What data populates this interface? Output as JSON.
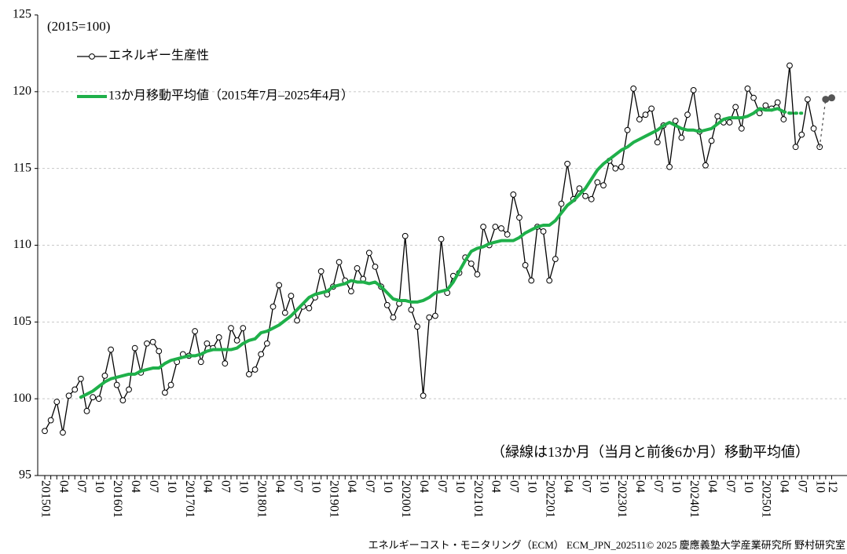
{
  "chart_data": {
    "type": "line",
    "unit_label": "(2015=100)",
    "annotation": "（緑線は13か月（当月と前後6か月）移動平均値）",
    "footer": "エネルギーコスト・モニタリング（ECM） ECM_JPN_202511© 2025 慶應義塾大学産業研究所 野村研究室",
    "categories": [
      "201501",
      null,
      null,
      "04",
      null,
      null,
      "07",
      null,
      null,
      "10",
      null,
      null,
      "201601",
      null,
      null,
      "04",
      null,
      null,
      "07",
      null,
      null,
      "10",
      null,
      null,
      "201701",
      null,
      null,
      "04",
      null,
      null,
      "07",
      null,
      null,
      "10",
      null,
      null,
      "201801",
      null,
      null,
      "04",
      null,
      null,
      "07",
      null,
      null,
      "10",
      null,
      null,
      "201901",
      null,
      null,
      "04",
      null,
      null,
      "07",
      null,
      null,
      "10",
      null,
      null,
      "202001",
      null,
      null,
      "04",
      null,
      null,
      "07",
      null,
      null,
      "10",
      null,
      null,
      "202101",
      null,
      null,
      "04",
      null,
      null,
      "07",
      null,
      null,
      "10",
      null,
      null,
      "202201",
      null,
      null,
      "04",
      null,
      null,
      "07",
      null,
      null,
      "10",
      null,
      null,
      "202301",
      null,
      null,
      "04",
      null,
      null,
      "07",
      null,
      null,
      "10",
      null,
      null,
      "202401",
      null,
      null,
      "04",
      null,
      null,
      "07",
      null,
      null,
      "10",
      null,
      null,
      "202501",
      null,
      null,
      "04",
      null,
      null,
      "07",
      null,
      null,
      "10",
      null,
      "12"
    ],
    "series": [
      {
        "name": "エネルギー生産性",
        "color": "#000000",
        "marker": "open-circle",
        "values": [
          97.9,
          98.6,
          99.8,
          97.8,
          100.2,
          100.6,
          101.3,
          99.2,
          100.1,
          100.0,
          101.5,
          103.2,
          100.9,
          99.9,
          100.6,
          103.3,
          101.7,
          103.6,
          103.7,
          103.1,
          100.4,
          100.9,
          102.4,
          102.9,
          102.8,
          104.4,
          102.4,
          103.6,
          103.3,
          104.0,
          102.3,
          104.6,
          103.8,
          104.6,
          101.6,
          101.9,
          102.9,
          103.6,
          106.0,
          107.4,
          105.6,
          106.7,
          105.1,
          106.0,
          105.9,
          106.6,
          108.3,
          106.8,
          107.3,
          108.9,
          107.7,
          107.0,
          108.5,
          107.8,
          109.5,
          108.6,
          107.3,
          106.1,
          105.3,
          106.2,
          110.6,
          105.8,
          104.7,
          100.2,
          105.3,
          105.4,
          110.4,
          106.9,
          108.0,
          108.2,
          109.2,
          108.8,
          108.1,
          111.2,
          110.0,
          111.2,
          111.1,
          110.7,
          113.3,
          111.8,
          108.7,
          107.7,
          111.2,
          110.9,
          107.7,
          109.1,
          112.7,
          115.3,
          113.0,
          113.7,
          113.2,
          113.0,
          114.1,
          113.9,
          115.5,
          115.0,
          115.1,
          117.5,
          120.2,
          118.2,
          118.5,
          118.9,
          116.7,
          117.8,
          115.1,
          118.1,
          117.0,
          118.5,
          120.1,
          117.4,
          115.2,
          116.8,
          118.4,
          118.0,
          118.0,
          119.0,
          117.6,
          120.2,
          119.6,
          118.6,
          119.1,
          118.9,
          119.3,
          118.2,
          121.7,
          116.4,
          117.2,
          119.5,
          117.6,
          116.4,
          null,
          null
        ]
      },
      {
        "name": "13か月移動平均値（2015年7月–2025年4月）",
        "color": "#1fb04a",
        "width": 4,
        "values": [
          null,
          null,
          null,
          null,
          null,
          null,
          100.1,
          100.3,
          100.5,
          100.8,
          101.1,
          101.3,
          101.4,
          101.5,
          101.6,
          101.6,
          101.8,
          101.9,
          102.0,
          102.0,
          102.3,
          102.5,
          102.6,
          102.7,
          102.8,
          102.8,
          102.9,
          103.1,
          103.2,
          103.2,
          103.2,
          103.2,
          103.3,
          103.6,
          103.8,
          103.9,
          104.3,
          104.4,
          104.6,
          104.8,
          105.1,
          105.4,
          105.8,
          106.2,
          106.6,
          106.8,
          106.9,
          107.0,
          107.3,
          107.4,
          107.5,
          107.7,
          107.6,
          107.6,
          107.5,
          107.6,
          107.3,
          106.9,
          106.5,
          106.4,
          106.4,
          106.3,
          106.3,
          106.4,
          106.6,
          106.9,
          107.0,
          107.1,
          107.6,
          108.3,
          109.0,
          109.6,
          109.8,
          109.9,
          110.1,
          110.2,
          110.3,
          110.3,
          110.3,
          110.5,
          110.8,
          111.0,
          111.2,
          111.3,
          111.3,
          111.6,
          112.1,
          112.6,
          112.9,
          113.3,
          113.7,
          114.3,
          114.9,
          115.3,
          115.6,
          115.9,
          116.2,
          116.4,
          116.7,
          116.9,
          117.1,
          117.3,
          117.5,
          117.8,
          118.0,
          117.8,
          117.6,
          117.5,
          117.5,
          117.4,
          117.5,
          117.6,
          117.9,
          118.2,
          118.3,
          118.3,
          118.3,
          118.4,
          118.6,
          118.9,
          118.8,
          118.8,
          118.9,
          118.7,
          null,
          null,
          null,
          null,
          null,
          null,
          null,
          null
        ]
      },
      {
        "color": "#555555",
        "marker": "filled-circle",
        "style": "dotted",
        "joins": 0,
        "values": [
          null,
          null,
          null,
          null,
          null,
          null,
          null,
          null,
          null,
          null,
          null,
          null,
          null,
          null,
          null,
          null,
          null,
          null,
          null,
          null,
          null,
          null,
          null,
          null,
          null,
          null,
          null,
          null,
          null,
          null,
          null,
          null,
          null,
          null,
          null,
          null,
          null,
          null,
          null,
          null,
          null,
          null,
          null,
          null,
          null,
          null,
          null,
          null,
          null,
          null,
          null,
          null,
          null,
          null,
          null,
          null,
          null,
          null,
          null,
          null,
          null,
          null,
          null,
          null,
          null,
          null,
          null,
          null,
          null,
          null,
          null,
          null,
          null,
          null,
          null,
          null,
          null,
          null,
          null,
          null,
          null,
          null,
          null,
          null,
          null,
          null,
          null,
          null,
          null,
          null,
          null,
          null,
          null,
          null,
          null,
          null,
          null,
          null,
          null,
          null,
          null,
          null,
          null,
          null,
          null,
          null,
          null,
          null,
          null,
          null,
          null,
          null,
          null,
          null,
          null,
          null,
          null,
          null,
          null,
          null,
          null,
          null,
          null,
          null,
          null,
          null,
          null,
          null,
          null,
          null,
          119.5,
          119.6
        ]
      },
      {
        "color": "#1fb04a",
        "width": 4,
        "style": "dotted",
        "joins": 1,
        "values": [
          null,
          null,
          null,
          null,
          null,
          null,
          null,
          null,
          null,
          null,
          null,
          null,
          null,
          null,
          null,
          null,
          null,
          null,
          null,
          null,
          null,
          null,
          null,
          null,
          null,
          null,
          null,
          null,
          null,
          null,
          null,
          null,
          null,
          null,
          null,
          null,
          null,
          null,
          null,
          null,
          null,
          null,
          null,
          null,
          null,
          null,
          null,
          null,
          null,
          null,
          null,
          null,
          null,
          null,
          null,
          null,
          null,
          null,
          null,
          null,
          null,
          null,
          null,
          null,
          null,
          null,
          null,
          null,
          null,
          null,
          null,
          null,
          null,
          null,
          null,
          null,
          null,
          null,
          null,
          null,
          null,
          null,
          null,
          null,
          null,
          null,
          null,
          null,
          null,
          null,
          null,
          null,
          null,
          null,
          null,
          null,
          null,
          null,
          null,
          null,
          null,
          null,
          null,
          null,
          null,
          null,
          null,
          null,
          null,
          null,
          null,
          null,
          null,
          null,
          null,
          null,
          null,
          null,
          null,
          null,
          null,
          null,
          null,
          null,
          118.6,
          118.6,
          118.6,
          null,
          null,
          null,
          null,
          null
        ]
      }
    ],
    "ylim": [
      95,
      125
    ],
    "yticks": [
      95,
      100,
      105,
      110,
      115,
      120,
      125
    ],
    "grid": true
  }
}
